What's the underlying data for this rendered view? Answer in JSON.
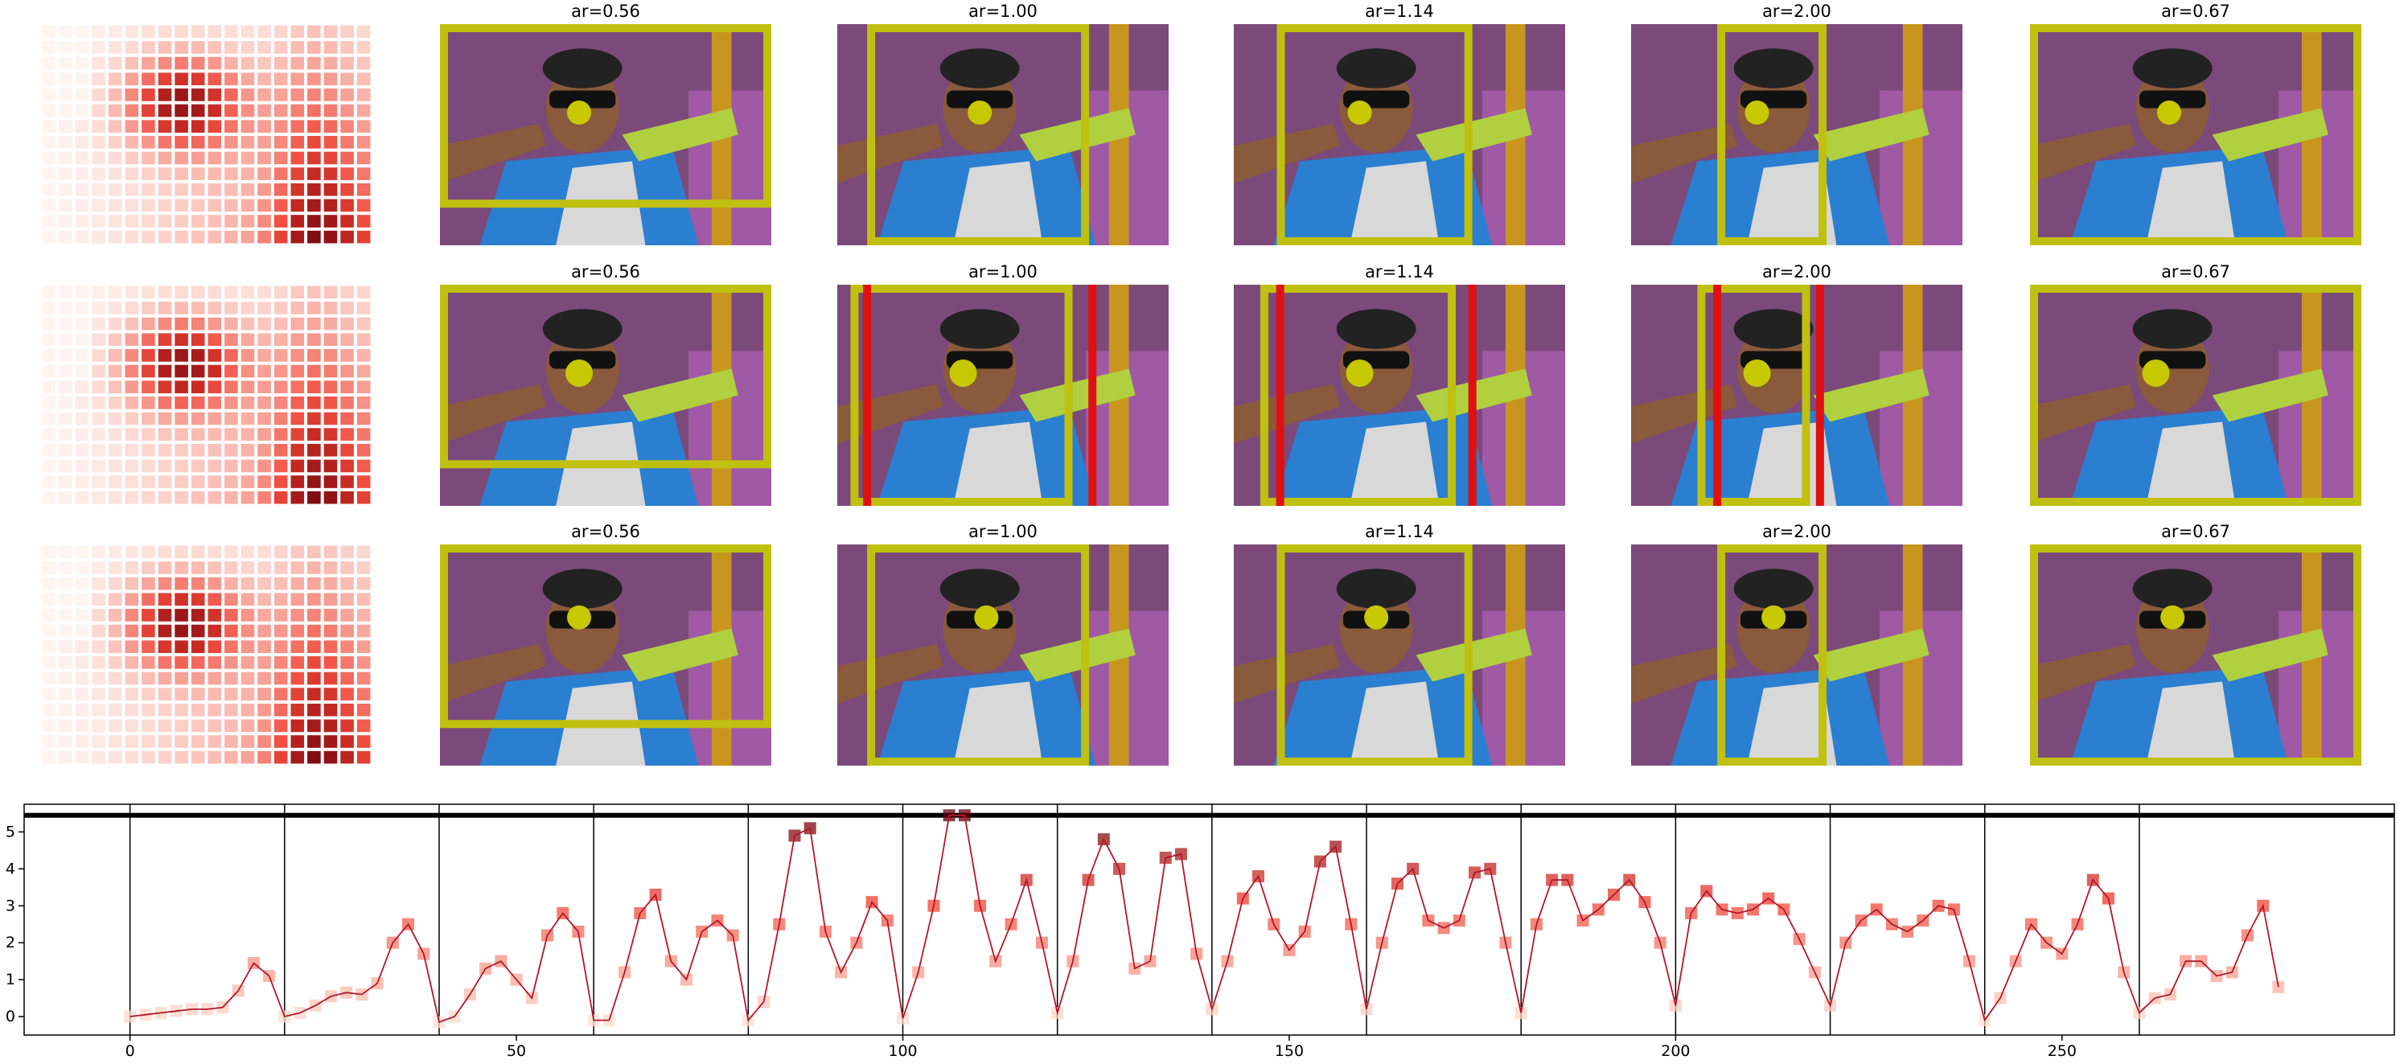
{
  "panel_titles": [
    [
      "ar=0.56",
      "ar=1.00",
      "ar=1.14",
      "ar=2.00",
      "ar=0.67"
    ],
    [
      "ar=0.56",
      "ar=1.00",
      "ar=1.14",
      "ar=2.00",
      "ar=0.67"
    ],
    [
      "ar=0.56",
      "ar=1.00",
      "ar=1.14",
      "ar=2.00",
      "ar=0.67"
    ]
  ],
  "chart_data": {
    "type": "line",
    "x": [
      0,
      2,
      4,
      6,
      8,
      10,
      12,
      14,
      16,
      18,
      20,
      22,
      24,
      26,
      28,
      30,
      32,
      34,
      36,
      38,
      40,
      42,
      44,
      46,
      48,
      50,
      52,
      54,
      56,
      58,
      60,
      62,
      64,
      66,
      68,
      70,
      72,
      74,
      76,
      78,
      80,
      82,
      84,
      86,
      88,
      90,
      92,
      94,
      96,
      98,
      100,
      102,
      104,
      106,
      108,
      110,
      112,
      114,
      116,
      118,
      120,
      122,
      124,
      126,
      128,
      130,
      132,
      134,
      136,
      138,
      140,
      142,
      144,
      146,
      148,
      150,
      152,
      154,
      156,
      158,
      160,
      162,
      164,
      166,
      168,
      170,
      172,
      174,
      176,
      178,
      180,
      182,
      184,
      186,
      188,
      190,
      192,
      194,
      196,
      198,
      200,
      202,
      204,
      206,
      208,
      210,
      212,
      214,
      216,
      218,
      220,
      222,
      224,
      226,
      228,
      230,
      232,
      234,
      236,
      238,
      240,
      242,
      244,
      246,
      248,
      250,
      252,
      254,
      256,
      258,
      260,
      262,
      264,
      266,
      268,
      270,
      272,
      274,
      276,
      278
    ],
    "values": [
      0,
      0.05,
      0.1,
      0.15,
      0.2,
      0.2,
      0.25,
      0.7,
      1.45,
      1.1,
      0,
      0.1,
      0.3,
      0.55,
      0.65,
      0.6,
      0.9,
      2.0,
      2.5,
      1.7,
      -0.15,
      0,
      0.6,
      1.3,
      1.5,
      1.0,
      0.5,
      2.2,
      2.8,
      2.3,
      -0.1,
      -0.1,
      1.2,
      2.8,
      3.3,
      1.5,
      1.0,
      2.3,
      2.6,
      2.2,
      -0.1,
      0.4,
      2.5,
      4.9,
      5.1,
      2.3,
      1.2,
      2.0,
      3.1,
      2.6,
      -0.05,
      1.2,
      3.0,
      5.45,
      5.45,
      3.0,
      1.5,
      2.5,
      3.7,
      2.0,
      0.1,
      1.5,
      3.7,
      4.8,
      4.0,
      1.3,
      1.5,
      4.3,
      4.4,
      1.7,
      0.2,
      1.5,
      3.2,
      3.8,
      2.5,
      1.8,
      2.3,
      4.2,
      4.6,
      2.5,
      0.2,
      2.0,
      3.6,
      4.0,
      2.6,
      2.4,
      2.6,
      3.9,
      4.0,
      2.0,
      0.1,
      2.5,
      3.7,
      3.7,
      2.6,
      2.9,
      3.3,
      3.7,
      3.1,
      2.0,
      0.3,
      2.8,
      3.4,
      2.9,
      2.8,
      2.9,
      3.2,
      2.9,
      2.1,
      1.2,
      0.3,
      2.0,
      2.6,
      2.9,
      2.5,
      2.3,
      2.6,
      3.0,
      2.9,
      1.5,
      -0.1,
      0.5,
      1.5,
      2.5,
      2.0,
      1.7,
      2.5,
      3.7,
      3.2,
      1.2,
      0.1,
      0.5,
      0.6,
      1.5,
      1.5,
      1.1,
      1.2,
      2.2,
      3.0,
      0.8
    ],
    "color": "#b2182b",
    "vlines": [
      0,
      20,
      40,
      60,
      80,
      100,
      120,
      140,
      160,
      180,
      200,
      220,
      240,
      260
    ],
    "hline": 5.45,
    "xlim": [
      -13.7,
      293
    ],
    "ylim": [
      -0.5,
      5.75
    ],
    "xticks": [
      0,
      50,
      100,
      150,
      200,
      250
    ],
    "yticks": [
      0,
      1,
      2,
      3,
      4,
      5
    ]
  }
}
